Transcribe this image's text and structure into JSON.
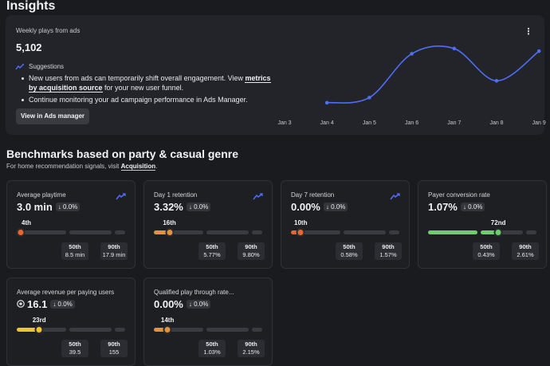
{
  "page_title": "Insights",
  "insights": {
    "label": "Weekly plays from ads",
    "value": "5,102",
    "kebab_glyph": "⋮",
    "suggestions_title": "Suggestions",
    "suggestion1_pre": "New users from ads can temporarily shift overall engagement. View ",
    "suggestion1_link": "metrics by acquisition source",
    "suggestion1_post": " for your new user funnel.",
    "suggestion2": "Continue monitoring your ad campaign performance in Ads Manager.",
    "button_label": "View in Ads manager"
  },
  "chart_data": {
    "type": "line",
    "x": [
      "Jan 3",
      "Jan 4",
      "Jan 5",
      "Jan 6",
      "Jan 7",
      "Jan 8",
      "Jan 9"
    ],
    "series": [
      {
        "values": [
          null,
          10,
          14,
          48,
          52,
          27,
          50
        ]
      }
    ],
    "ylim": [
      0,
      60
    ],
    "grid": false,
    "color": "#4f6ef7"
  },
  "benchmarks": {
    "title": "Benchmarks based on party & casual genre",
    "subtitle_pre": "For home recommendation signals, visit ",
    "subtitle_link": "Acquisition",
    "subtitle_post": ".",
    "cards": [
      {
        "title": "Average playtime",
        "value": "3.0 min",
        "delta": "↓ 0.0%",
        "rank": "4th",
        "percentile": 4,
        "color": "#e8662f",
        "p50_label": "50th",
        "p50_value": "8.5 min",
        "p90_label": "90th",
        "p90_value": "17.9 min",
        "trend": true,
        "coin": false
      },
      {
        "title": "Day 1 retention",
        "value": "3.32%",
        "delta": "↓ 0.0%",
        "rank": "16th",
        "percentile": 16,
        "color": "#e8903a",
        "p50_label": "50th",
        "p50_value": "5.77%",
        "p90_label": "90th",
        "p90_value": "9.80%",
        "trend": true,
        "coin": false
      },
      {
        "title": "Day 7 retention",
        "value": "0.00%",
        "delta": "↓ 0.0%",
        "rank": "10th",
        "percentile": 10,
        "color": "#e8662f",
        "p50_label": "50th",
        "p50_value": "0.58%",
        "p90_label": "90th",
        "p90_value": "1.57%",
        "trend": true,
        "coin": false
      },
      {
        "title": "Payer conversion rate",
        "value": "1.07%",
        "delta": "↓ 0.0%",
        "rank": "72nd",
        "percentile": 72,
        "color": "#6dcf6a",
        "p50_label": "50th",
        "p50_value": "0.43%",
        "p90_label": "90th",
        "p90_value": "2.61%",
        "trend": false,
        "coin": false
      },
      {
        "title": "Average revenue per paying users",
        "value": "16.1",
        "delta": "↓ 0.0%",
        "rank": "23rd",
        "percentile": 23,
        "color": "#f2c232",
        "p50_label": "50th",
        "p50_value": "39.5",
        "p90_label": "90th",
        "p90_value": "155",
        "trend": false,
        "coin": true
      },
      {
        "title": "Qualified play through rate...",
        "value": "0.00%",
        "delta": "↓ 0.0%",
        "rank": "14th",
        "percentile": 14,
        "color": "#e8903a",
        "p50_label": "50th",
        "p50_value": "1.03%",
        "p90_label": "90th",
        "p90_value": "2.15%",
        "trend": false,
        "coin": false
      }
    ]
  }
}
